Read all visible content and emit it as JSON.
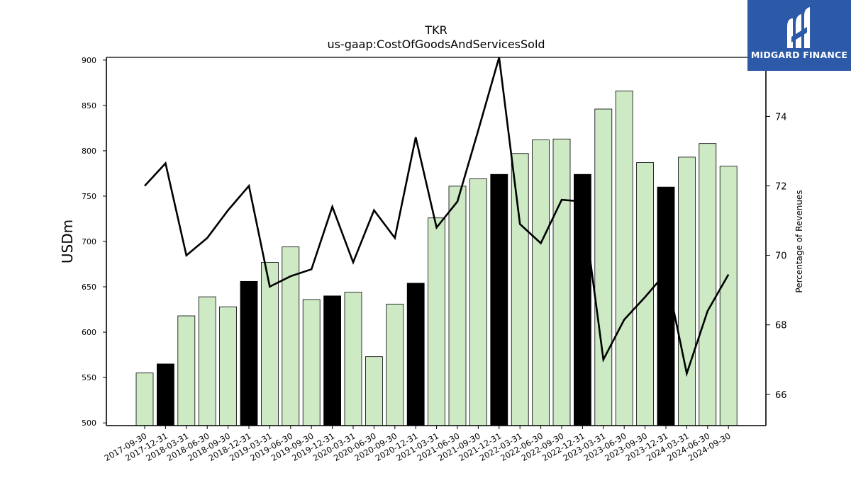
{
  "logo": {
    "text": "MIDGARD FINANCE"
  },
  "chart_data": {
    "type": "bar",
    "title": "TKR",
    "subtitle": "us-gaap:CostOfGoodsAndServicesSold",
    "ylabel": "USDm",
    "y2label": "Percentage of Revenues",
    "ylim": [
      497,
      903
    ],
    "y2lim": [
      65.1,
      75.7
    ],
    "yticks": [
      500,
      550,
      600,
      650,
      700,
      750,
      800,
      850,
      900
    ],
    "y2ticks": [
      66,
      68,
      70,
      72,
      74
    ],
    "categories": [
      "2017-09-30",
      "2017-12-31",
      "2018-03-31",
      "2018-06-30",
      "2018-09-30",
      "2018-12-31",
      "2019-03-31",
      "2019-06-30",
      "2019-09-30",
      "2019-12-31",
      "2020-03-31",
      "2020-06-30",
      "2020-09-30",
      "2020-12-31",
      "2021-03-31",
      "2021-06-30",
      "2021-09-30",
      "2021-12-31",
      "2022-03-31",
      "2022-06-30",
      "2022-09-30",
      "2022-12-31",
      "2023-03-31",
      "2023-06-30",
      "2023-09-30",
      "2023-12-31",
      "2024-03-31",
      "2024-06-30",
      "2024-09-30"
    ],
    "series": [
      {
        "type": "bar",
        "values": [
          555,
          565,
          618,
          639,
          628,
          656,
          677,
          694,
          636,
          640,
          644,
          573,
          631,
          654,
          726,
          761,
          769,
          774,
          797,
          812,
          813,
          774,
          846,
          866,
          787,
          760,
          793,
          808,
          783
        ],
        "annual": [
          false,
          true,
          false,
          false,
          false,
          true,
          false,
          false,
          false,
          true,
          false,
          false,
          false,
          true,
          false,
          false,
          false,
          true,
          false,
          false,
          false,
          true,
          false,
          false,
          false,
          true,
          false,
          false,
          false
        ],
        "color": "#cdeac5",
        "annual_color": "#000000"
      },
      {
        "type": "line",
        "axis": "right",
        "values": [
          72.0,
          72.65,
          70.0,
          70.5,
          71.3,
          72.0,
          69.1,
          69.4,
          69.6,
          71.4,
          69.8,
          71.3,
          70.5,
          73.4,
          70.8,
          71.55,
          73.6,
          75.7,
          70.9,
          70.35,
          71.6,
          71.55,
          67.0,
          68.15,
          68.8,
          69.5,
          66.6,
          68.4,
          69.45
        ],
        "color": "#000000"
      }
    ]
  }
}
